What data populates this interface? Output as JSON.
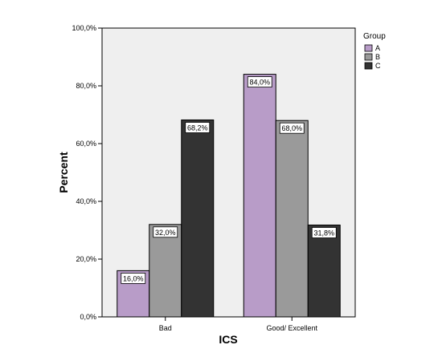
{
  "chart_data": {
    "type": "bar",
    "title": "",
    "xlabel": "ICS",
    "ylabel": "Percent",
    "categories": [
      "Bad",
      "Good/ Excellent"
    ],
    "series": [
      {
        "name": "A",
        "values": [
          16.0,
          84.0
        ],
        "labels": [
          "16,0%",
          "84,0%"
        ],
        "color": "#b89cc8"
      },
      {
        "name": "B",
        "values": [
          32.0,
          68.0
        ],
        "labels": [
          "32,0%",
          "68,0%"
        ],
        "color": "#9a9a9a"
      },
      {
        "name": "C",
        "values": [
          68.2,
          31.8
        ],
        "labels": [
          "68,2%",
          "31,8%"
        ],
        "color": "#333333"
      }
    ],
    "ylim": [
      0,
      100
    ],
    "yticks": [
      0,
      20,
      40,
      60,
      80,
      100
    ],
    "ytick_labels": [
      "0,0%",
      "20,0%",
      "40,0%",
      "60,0%",
      "80,0%",
      "100,0%"
    ],
    "legend": {
      "title": "Group",
      "placement": "top-right"
    },
    "grid": false,
    "plot_background": "#efefef"
  }
}
